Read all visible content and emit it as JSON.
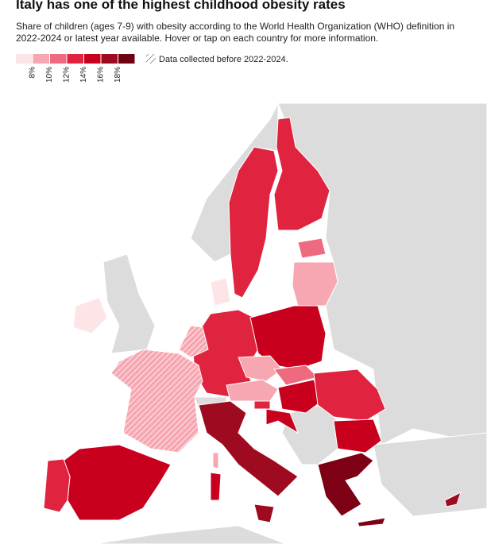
{
  "header": {
    "title": "Italy has one of the highest childhood obesity rates",
    "subtitle": "Share of children (ages 7-9) with obesity according to the World Health Organization (WHO) definition in 2022-2024 or latest year available. Hover or tap on each country for more information."
  },
  "legend": {
    "colors": [
      "#fde4e7",
      "#f7a7b2",
      "#ee6a7e",
      "#e0243f",
      "#c8001e",
      "#9e0a1f",
      "#6e0010"
    ],
    "labels": [
      "8%",
      "10%",
      "12%",
      "14%",
      "16%",
      "18%"
    ],
    "hatch_note": "Data collected before 2022-2024."
  }
}
